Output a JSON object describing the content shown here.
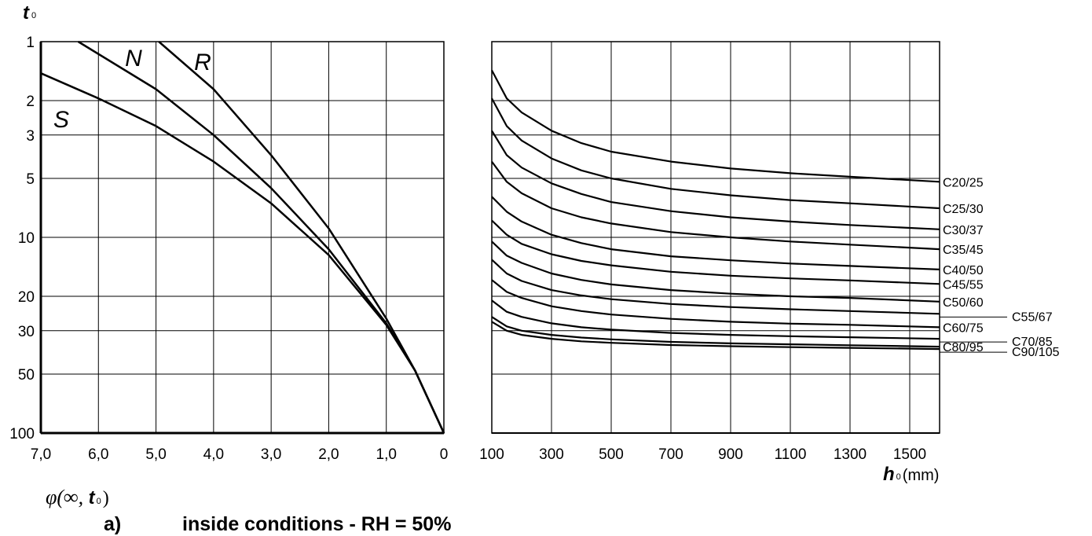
{
  "chart_data": [
    {
      "type": "line",
      "panel": "left",
      "xlabel": "φ(∞, t₀)",
      "ylabel": "t₀",
      "xlim": [
        7.0,
        0
      ],
      "x_reversed": true,
      "y_scale": "log",
      "ylim": [
        1,
        100
      ],
      "y_reversed": true,
      "grid": true,
      "x_ticks": [
        "7,0",
        "6,0",
        "5,0",
        "4,0",
        "3,0",
        "2,0",
        "1,0",
        "0"
      ],
      "y_ticks": [
        "1",
        "2",
        "3",
        "5",
        "10",
        "20",
        "30",
        "50",
        "100"
      ],
      "series": [
        {
          "name": "S",
          "x": [
            7.0,
            6.0,
            5.0,
            4.0,
            3.0,
            2.0,
            1.0,
            0.5,
            0
          ],
          "y": [
            1.45,
            1.95,
            2.7,
            4.1,
            6.7,
            12.3,
            28,
            48,
            100
          ]
        },
        {
          "name": "N",
          "x": [
            6.35,
            5.0,
            4.0,
            3.0,
            2.0,
            1.0,
            0.5,
            0
          ],
          "y": [
            1.0,
            1.75,
            3.0,
            5.6,
            11.5,
            27.5,
            48,
            100
          ]
        },
        {
          "name": "R",
          "x": [
            4.95,
            4.0,
            3.0,
            2.0,
            1.0,
            0.5,
            0
          ],
          "y": [
            1.0,
            1.75,
            3.8,
            9.0,
            26,
            48,
            100
          ]
        }
      ]
    },
    {
      "type": "line",
      "panel": "right",
      "xlabel": "h₀(mm)",
      "xlim": [
        100,
        1600
      ],
      "x_ticks": [
        "100",
        "300",
        "500",
        "700",
        "900",
        "1100",
        "1300",
        "1500"
      ],
      "grid": true,
      "y_shared_with_left": true,
      "series": [
        {
          "name": "C20/25",
          "x": [
            100,
            150,
            200,
            300,
            400,
            500,
            700,
            900,
            1100,
            1300,
            1600
          ],
          "y": [
            1.4,
            1.95,
            2.3,
            2.85,
            3.3,
            3.65,
            4.1,
            4.45,
            4.7,
            4.9,
            5.2
          ]
        },
        {
          "name": "C25/30",
          "x": [
            100,
            150,
            200,
            300,
            400,
            500,
            700,
            900,
            1100,
            1300,
            1600
          ],
          "y": [
            1.95,
            2.7,
            3.2,
            3.95,
            4.55,
            5.0,
            5.65,
            6.1,
            6.45,
            6.7,
            7.1
          ]
        },
        {
          "name": "C30/37",
          "x": [
            100,
            150,
            200,
            300,
            400,
            500,
            700,
            900,
            1100,
            1300,
            1600
          ],
          "y": [
            2.85,
            3.8,
            4.4,
            5.3,
            6.0,
            6.6,
            7.35,
            7.9,
            8.3,
            8.65,
            9.1
          ]
        },
        {
          "name": "C35/45",
          "x": [
            100,
            150,
            200,
            300,
            400,
            500,
            700,
            900,
            1100,
            1300,
            1600
          ],
          "y": [
            4.1,
            5.2,
            5.95,
            7.1,
            7.9,
            8.5,
            9.4,
            10.0,
            10.5,
            10.9,
            11.5
          ]
        },
        {
          "name": "C40/50",
          "x": [
            100,
            150,
            200,
            300,
            400,
            500,
            700,
            900,
            1100,
            1300,
            1600
          ],
          "y": [
            6.2,
            7.4,
            8.3,
            9.7,
            10.7,
            11.5,
            12.5,
            13.1,
            13.6,
            14.0,
            14.6
          ]
        },
        {
          "name": "C45/55",
          "x": [
            100,
            150,
            200,
            300,
            400,
            500,
            700,
            900,
            1100,
            1300,
            1600
          ],
          "y": [
            8.2,
            9.7,
            10.8,
            12.2,
            13.2,
            13.9,
            15.0,
            15.7,
            16.2,
            16.6,
            17.3
          ]
        },
        {
          "name": "C50/60",
          "x": [
            100,
            150,
            200,
            300,
            400,
            500,
            700,
            900,
            1100,
            1300,
            1600
          ],
          "y": [
            10.5,
            12.4,
            13.5,
            15.3,
            16.5,
            17.4,
            18.6,
            19.4,
            20.0,
            20.4,
            21.3
          ]
        },
        {
          "name": "C55/67",
          "x": [
            100,
            150,
            200,
            300,
            400,
            500,
            700,
            900,
            1100,
            1300,
            1600
          ],
          "y": [
            13.0,
            15.3,
            16.7,
            18.6,
            19.8,
            20.7,
            21.9,
            22.7,
            23.3,
            23.8,
            24.6
          ]
        },
        {
          "name": "C60/75",
          "x": [
            100,
            150,
            200,
            300,
            400,
            500,
            700,
            900,
            1100,
            1300,
            1600
          ],
          "y": [
            16.5,
            19.0,
            20.4,
            22.5,
            23.8,
            24.8,
            26.1,
            27.0,
            27.6,
            28.0,
            28.8
          ]
        },
        {
          "name": "C70/85",
          "x": [
            100,
            150,
            200,
            300,
            400,
            500,
            700,
            900,
            1100,
            1300,
            1600
          ],
          "y": [
            21.0,
            24.0,
            25.5,
            27.5,
            28.8,
            29.6,
            30.8,
            31.5,
            32.0,
            32.4,
            33.0
          ]
        },
        {
          "name": "C80/95",
          "x": [
            100,
            150,
            200,
            300,
            400,
            500,
            700,
            900,
            1100,
            1300,
            1600
          ],
          "y": [
            25.5,
            28.5,
            30.0,
            31.5,
            32.5,
            33.2,
            34.2,
            34.8,
            35.2,
            35.6,
            36.2
          ]
        },
        {
          "name": "C90/105",
          "x": [
            100,
            150,
            200,
            300,
            400,
            500,
            700,
            900,
            1100,
            1300,
            1600
          ],
          "y": [
            27.0,
            30.0,
            31.5,
            33.0,
            34.0,
            34.6,
            35.5,
            36.0,
            36.4,
            36.7,
            37.2
          ]
        }
      ]
    }
  ],
  "labels": {
    "y_axis_t": "t",
    "y_axis_sub": "0",
    "phi_prefix": "φ(∞, ",
    "phi_t": "t",
    "phi_sub": "0",
    "phi_suffix": ")",
    "h_axis_h": "h",
    "h_axis_sub": "0",
    "h_axis_unit": "(mm)",
    "caption_letter": "a)",
    "caption_text": "inside conditions -  RH = 50%"
  }
}
